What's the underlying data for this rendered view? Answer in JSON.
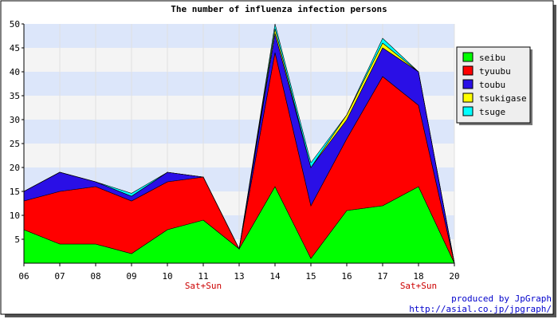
{
  "chart_data": {
    "type": "area",
    "stacked": true,
    "title": "The number of influenza infection persons",
    "categories": [
      "06",
      "07",
      "08",
      "09",
      "10",
      "11",
      "13",
      "14",
      "15",
      "16",
      "17",
      "18",
      "20"
    ],
    "category_notes": [
      "",
      "",
      "",
      "",
      "",
      "Sat+Sun",
      "",
      "",
      "",
      "",
      "",
      "Sat+Sun",
      ""
    ],
    "ylim": [
      0,
      50
    ],
    "yticks": [
      5,
      10,
      15,
      20,
      25,
      30,
      35,
      40,
      45,
      50
    ],
    "grid": "horizontal bands",
    "legend_position": "right",
    "series": [
      {
        "name": "seibu",
        "color": "#00ff00",
        "values": [
          7,
          4,
          4,
          2,
          7,
          9,
          3,
          16,
          1,
          11,
          12,
          16,
          0
        ]
      },
      {
        "name": "tyuubu",
        "color": "#ff0000",
        "values": [
          6,
          11,
          12,
          11,
          10,
          9,
          0,
          28,
          11,
          15,
          27,
          17,
          0
        ]
      },
      {
        "name": "toubu",
        "color": "#2a0fe6",
        "values": [
          2,
          4,
          1,
          1,
          2,
          0,
          0,
          4,
          8,
          4,
          6,
          7,
          0
        ]
      },
      {
        "name": "tsukigase",
        "color": "#ffff00",
        "values": [
          0,
          0,
          0,
          0,
          0,
          0,
          0,
          1,
          0,
          1,
          1,
          0,
          0
        ]
      },
      {
        "name": "tsuge",
        "color": "#00ffff",
        "values": [
          0,
          0,
          0,
          0.6,
          0,
          0,
          0,
          1,
          1,
          0,
          1,
          0,
          0
        ]
      }
    ]
  },
  "credit": {
    "line1": "produced by JpGraph",
    "line2": "http://asial.co.jp/jpgraph/"
  }
}
